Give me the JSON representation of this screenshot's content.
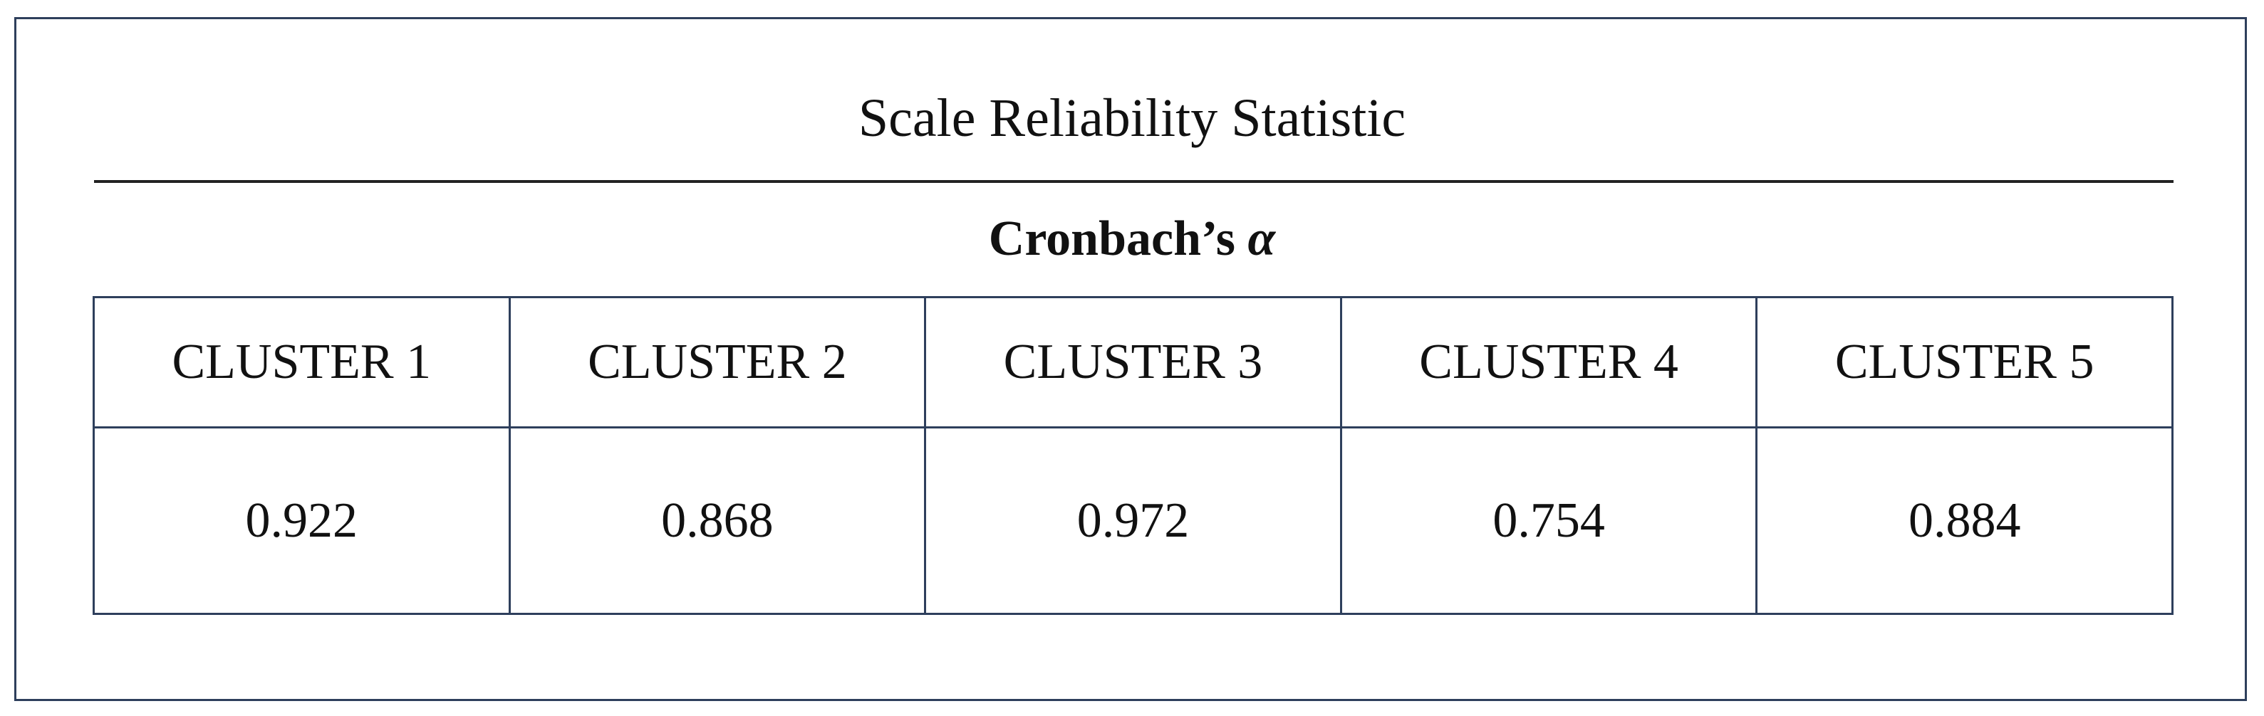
{
  "header": {
    "title": "Scale Reliability Statistic",
    "subtitle": {
      "text": "Cronbach’s",
      "symbol": "α"
    }
  },
  "table": {
    "columns": [
      "CLUSTER 1",
      "CLUSTER 2",
      "CLUSTER 3",
      "CLUSTER 4",
      "CLUSTER 5"
    ],
    "rows": [
      [
        0.922,
        0.868,
        0.972,
        0.754,
        0.884
      ]
    ]
  }
}
